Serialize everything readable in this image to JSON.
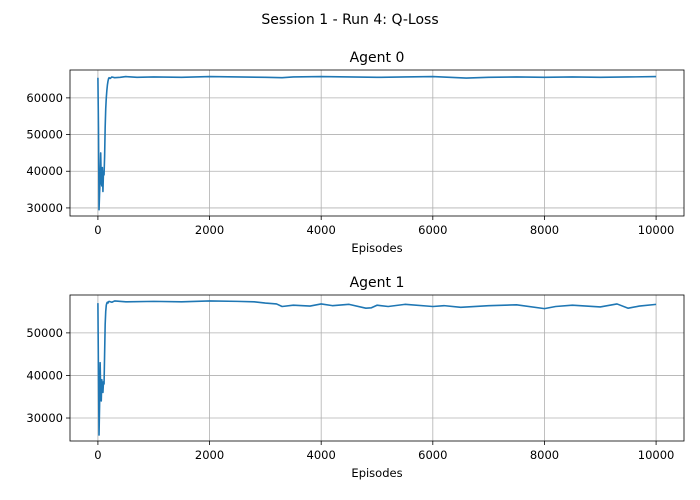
{
  "figure": {
    "suptitle": "Session 1 - Run 4: Q-Loss",
    "line_color": "#1f77b4"
  },
  "chart_data": [
    {
      "type": "line",
      "title": "Agent 0",
      "xlabel": "Episodes",
      "ylabel": "",
      "xlim": [
        -500,
        10500
      ],
      "ylim": [
        27800,
        67600
      ],
      "xticks": [
        0,
        2000,
        4000,
        6000,
        8000,
        10000
      ],
      "xtick_labels": [
        "0",
        "2000",
        "4000",
        "6000",
        "8000",
        "10000"
      ],
      "yticks": [
        30000,
        40000,
        50000,
        60000
      ],
      "ytick_labels": [
        "30000",
        "40000",
        "50000",
        "60000"
      ],
      "grid": true,
      "series": [
        {
          "x": [
            0,
            10,
            20,
            30,
            40,
            50,
            60,
            70,
            80,
            90,
            100,
            110,
            120,
            130,
            140,
            150,
            160,
            170,
            180,
            190,
            200,
            220,
            250,
            300,
            400,
            500,
            700,
            1000,
            1500,
            2000,
            2500,
            3000,
            3300,
            3500,
            4000,
            4500,
            5000,
            5500,
            6000,
            6300,
            6600,
            7000,
            7500,
            8000,
            8500,
            9000,
            9500,
            10000
          ],
          "y": [
            65500,
            52000,
            29500,
            34000,
            38000,
            45000,
            37000,
            36000,
            41000,
            34500,
            40000,
            39000,
            44000,
            52000,
            57000,
            60000,
            62000,
            63500,
            64500,
            65200,
            65500,
            65300,
            65700,
            65500,
            65600,
            65800,
            65600,
            65700,
            65600,
            65800,
            65700,
            65600,
            65500,
            65700,
            65800,
            65700,
            65600,
            65700,
            65800,
            65600,
            65400,
            65600,
            65700,
            65600,
            65700,
            65600,
            65700,
            65800
          ]
        }
      ]
    },
    {
      "type": "line",
      "title": "Agent 1",
      "xlabel": "Episodes",
      "ylabel": "",
      "xlim": [
        -500,
        10500
      ],
      "ylim": [
        24600,
        58900
      ],
      "xticks": [
        0,
        2000,
        4000,
        6000,
        8000,
        10000
      ],
      "xtick_labels": [
        "0",
        "2000",
        "4000",
        "6000",
        "8000",
        "10000"
      ],
      "yticks": [
        30000,
        40000,
        50000
      ],
      "ytick_labels": [
        "30000",
        "40000",
        "50000"
      ],
      "grid": true,
      "series": [
        {
          "x": [
            0,
            10,
            20,
            30,
            40,
            50,
            60,
            70,
            80,
            90,
            100,
            110,
            120,
            130,
            140,
            150,
            160,
            170,
            180,
            190,
            200,
            250,
            300,
            500,
            1000,
            1500,
            2000,
            2500,
            2800,
            3000,
            3200,
            3300,
            3500,
            3800,
            4000,
            4200,
            4500,
            4800,
            4900,
            5000,
            5200,
            5500,
            6000,
            6200,
            6500,
            7000,
            7500,
            8000,
            8200,
            8500,
            9000,
            9300,
            9500,
            9700,
            10000
          ],
          "y": [
            57000,
            40000,
            26000,
            33000,
            43000,
            36000,
            34000,
            39000,
            37500,
            36000,
            38500,
            38000,
            45000,
            52000,
            55000,
            56500,
            57000,
            57200,
            57000,
            57300,
            57400,
            57200,
            57500,
            57300,
            57400,
            57300,
            57500,
            57400,
            57300,
            57000,
            56800,
            56200,
            56500,
            56300,
            56800,
            56400,
            56700,
            55800,
            55900,
            56500,
            56200,
            56700,
            56200,
            56400,
            56000,
            56400,
            56600,
            55700,
            56200,
            56500,
            56100,
            56800,
            55800,
            56300,
            56700
          ]
        }
      ]
    }
  ]
}
